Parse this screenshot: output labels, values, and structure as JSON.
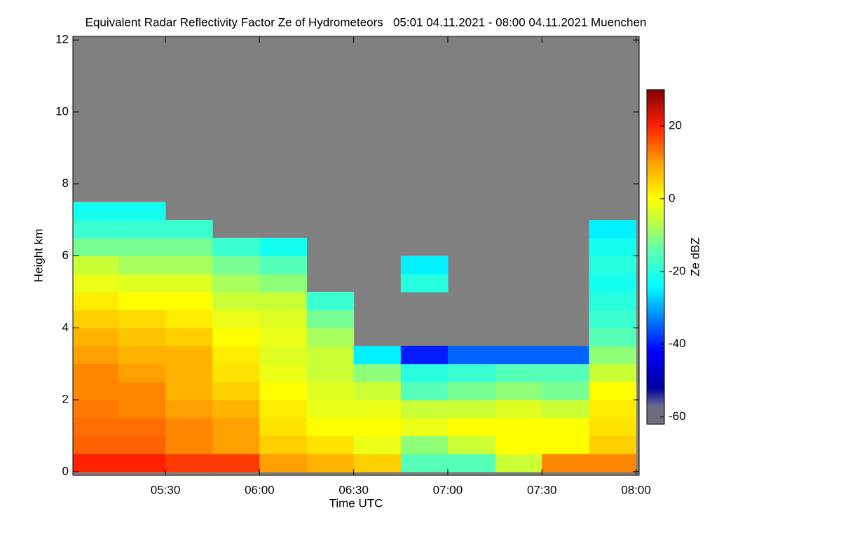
{
  "chart_data": {
    "type": "heatmap",
    "title": "Equivalent Radar Reflectivity Factor Ze of Hydrometeors   05:01 04.11.2021 - 08:00 04.11.2021 Muenchen",
    "xlabel": "Time UTC",
    "ylabel": "Height km",
    "colorbar_label": "Ze dBZ",
    "xlim": [
      300.5,
      481
    ],
    "xticks": [
      {
        "value": 330,
        "label": "05:30"
      },
      {
        "value": 360,
        "label": "06:00"
      },
      {
        "value": 390,
        "label": "06:30"
      },
      {
        "value": 420,
        "label": "07:00"
      },
      {
        "value": 450,
        "label": "07:30"
      },
      {
        "value": 480,
        "label": "08:00"
      }
    ],
    "ylim": [
      -0.1,
      12.1
    ],
    "yticks": [
      0,
      2,
      4,
      6,
      8,
      10,
      12
    ],
    "zlim": [
      -62,
      30
    ],
    "zticks": [
      -60,
      -40,
      -20,
      0,
      20
    ],
    "no_echo_color": "#808080",
    "colormap": [
      {
        "value": -62,
        "color": "#707070"
      },
      {
        "value": -57,
        "color": "#6a6a8a"
      },
      {
        "value": -52,
        "color": "#0000a0"
      },
      {
        "value": -42,
        "color": "#0000ff"
      },
      {
        "value": -30,
        "color": "#00aaff"
      },
      {
        "value": -24,
        "color": "#00ffff"
      },
      {
        "value": -14,
        "color": "#60ffb0"
      },
      {
        "value": -6,
        "color": "#c0ff40"
      },
      {
        "value": 0,
        "color": "#ffff00"
      },
      {
        "value": 10,
        "color": "#ffa000"
      },
      {
        "value": 20,
        "color": "#ff2000"
      },
      {
        "value": 30,
        "color": "#800000"
      }
    ],
    "x_edges": [
      300,
      315,
      330,
      345,
      360,
      375,
      390,
      405,
      420,
      435,
      450,
      465,
      480
    ],
    "y_edges": [
      0,
      0.5,
      1,
      1.5,
      2,
      2.5,
      3,
      3.5,
      4,
      4.5,
      5,
      5.5,
      6,
      6.5,
      7,
      7.5,
      8
    ],
    "z": [
      [
        20,
        20,
        18,
        18,
        10,
        8,
        5,
        -15,
        -15,
        -5,
        12,
        12
      ],
      [
        15,
        15,
        12,
        10,
        5,
        3,
        -2,
        -10,
        -5,
        0,
        0,
        5
      ],
      [
        14,
        14,
        12,
        10,
        3,
        0,
        0,
        -2,
        0,
        0,
        0,
        3
      ],
      [
        13,
        12,
        10,
        8,
        2,
        -2,
        -2,
        -5,
        -5,
        -3,
        -5,
        2
      ],
      [
        12,
        12,
        8,
        5,
        0,
        -3,
        -5,
        -15,
        -12,
        -10,
        -12,
        0
      ],
      [
        12,
        10,
        8,
        3,
        -2,
        -5,
        -10,
        -20,
        -18,
        -15,
        -15,
        -5
      ],
      [
        10,
        8,
        8,
        2,
        -3,
        -5,
        -25,
        -40,
        -35,
        -35,
        -35,
        -10
      ],
      [
        8,
        6,
        5,
        0,
        -2,
        -8,
        null,
        null,
        null,
        null,
        null,
        -15
      ],
      [
        5,
        4,
        2,
        -2,
        -3,
        -12,
        null,
        null,
        null,
        null,
        null,
        -18
      ],
      [
        2,
        0,
        0,
        -5,
        -5,
        -18,
        null,
        null,
        null,
        null,
        null,
        -20
      ],
      [
        -2,
        -3,
        -3,
        -8,
        -10,
        null,
        null,
        -20,
        null,
        null,
        null,
        -22
      ],
      [
        -5,
        -8,
        -8,
        -12,
        -15,
        null,
        null,
        -25,
        null,
        null,
        null,
        -20
      ],
      [
        -12,
        -12,
        -12,
        -18,
        -22,
        null,
        null,
        null,
        null,
        null,
        null,
        -22
      ],
      [
        -18,
        -18,
        -18,
        null,
        null,
        null,
        null,
        null,
        null,
        null,
        null,
        -25
      ],
      [
        -22,
        -22,
        null,
        null,
        null,
        null,
        null,
        null,
        null,
        null,
        null,
        null
      ],
      [
        null,
        null,
        null,
        null,
        null,
        null,
        null,
        null,
        null,
        null,
        null,
        null
      ]
    ]
  }
}
